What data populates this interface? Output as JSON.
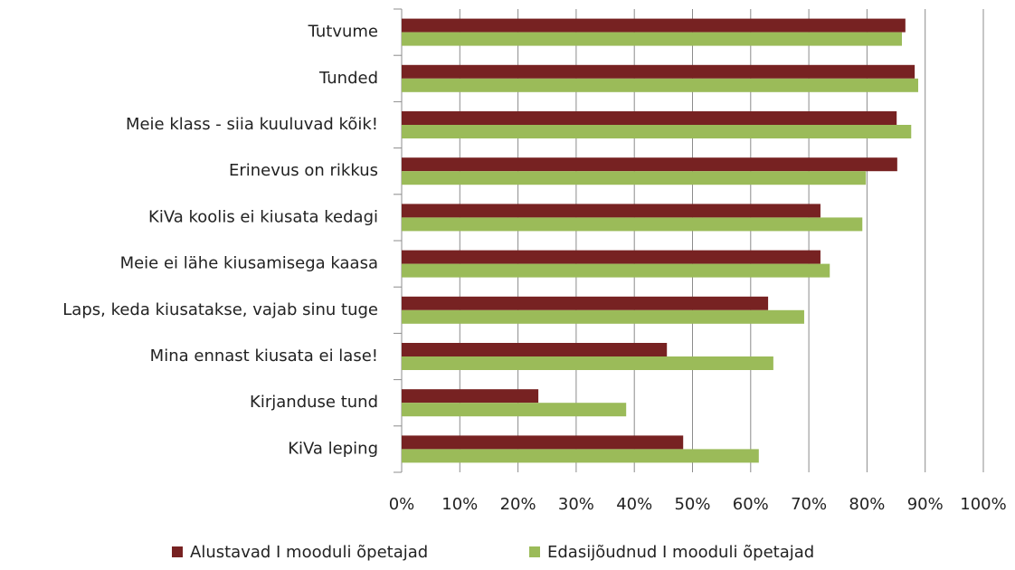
{
  "chart_data": {
    "type": "bar",
    "orientation": "horizontal",
    "categories": [
      "Tutvume",
      "Tunded",
      "Meie klass - siia kuuluvad kõik!",
      "Erinevus on rikkus",
      "KiVa koolis ei kiusata kedagi",
      "Meie ei lähe kiusamisega kaasa",
      "Laps, keda kiusatakse, vajab sinu tuge",
      "Mina ennast kiusata ei lase!",
      "Kirjanduse tund",
      "KiVa leping"
    ],
    "series": [
      {
        "name": "Alustavad I mooduli õpetajad",
        "color": "#772222",
        "values": [
          86.6,
          88.2,
          85.1,
          85.2,
          72.0,
          72.0,
          63.0,
          45.6,
          23.5,
          48.4
        ]
      },
      {
        "name": "Edasijõudnud I mooduli õpetajad",
        "color": "#9bbb59",
        "values": [
          86.0,
          88.8,
          87.6,
          79.8,
          79.2,
          73.6,
          69.2,
          63.9,
          38.6,
          61.4
        ]
      }
    ],
    "xlim": [
      0,
      100
    ],
    "xticks": [
      {
        "value": 0,
        "label": "0%"
      },
      {
        "value": 10,
        "label": "10%"
      },
      {
        "value": 20,
        "label": "20%"
      },
      {
        "value": 30,
        "label": "30%"
      },
      {
        "value": 40,
        "label": "40%"
      },
      {
        "value": 50,
        "label": "50%"
      },
      {
        "value": 60,
        "label": "60%"
      },
      {
        "value": 70,
        "label": "70%"
      },
      {
        "value": 80,
        "label": "80%"
      },
      {
        "value": 90,
        "label": "90%"
      },
      {
        "value": 100,
        "label": "100%"
      }
    ],
    "grid": true,
    "legend": "bottom"
  }
}
